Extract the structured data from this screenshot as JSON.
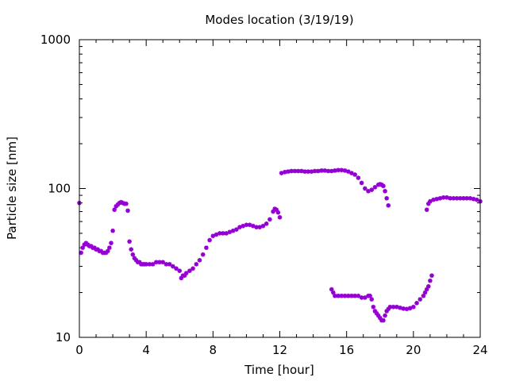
{
  "chart_data": {
    "type": "scatter",
    "title": "Modes location (3/19/19)",
    "xlabel": "Time [hour]",
    "ylabel": "Particle size [nm]",
    "xlim": [
      0,
      24
    ],
    "ylim": [
      10,
      1000
    ],
    "yscale": "log",
    "grid": false,
    "marker_color": "#9400d3",
    "x_ticks": [
      0,
      4,
      8,
      12,
      16,
      20,
      24
    ],
    "x_tick_labels": [
      "0",
      "4",
      "8",
      "12",
      "16",
      "20",
      "24"
    ],
    "y_ticks": [
      10,
      100,
      1000
    ],
    "y_tick_labels": [
      "10",
      "100",
      "1000"
    ],
    "series": [
      {
        "points": [
          [
            0.0,
            80
          ],
          [
            0.1,
            37
          ],
          [
            0.2,
            40
          ],
          [
            0.3,
            42
          ],
          [
            0.4,
            43
          ],
          [
            0.5,
            42
          ],
          [
            0.6,
            41
          ],
          [
            0.7,
            41
          ],
          [
            0.8,
            40
          ],
          [
            0.9,
            40
          ],
          [
            1.0,
            39
          ],
          [
            1.1,
            39
          ],
          [
            1.2,
            38
          ],
          [
            1.3,
            38
          ],
          [
            1.4,
            37
          ],
          [
            1.5,
            37
          ],
          [
            1.6,
            37
          ],
          [
            1.7,
            38
          ],
          [
            1.8,
            40
          ],
          [
            1.9,
            43
          ],
          [
            2.0,
            52
          ],
          [
            2.1,
            72
          ],
          [
            2.2,
            76
          ],
          [
            2.3,
            78
          ],
          [
            2.4,
            80
          ],
          [
            2.5,
            81
          ],
          [
            2.6,
            80
          ],
          [
            2.7,
            79
          ],
          [
            2.8,
            79
          ],
          [
            2.9,
            71
          ],
          [
            3.0,
            44
          ],
          [
            3.1,
            39
          ],
          [
            3.2,
            36
          ],
          [
            3.3,
            34
          ],
          [
            3.4,
            33
          ],
          [
            3.5,
            32
          ],
          [
            3.6,
            32
          ],
          [
            3.7,
            31
          ],
          [
            3.8,
            31
          ],
          [
            3.9,
            31
          ],
          [
            4.0,
            31
          ],
          [
            4.2,
            31
          ],
          [
            4.4,
            31
          ],
          [
            4.6,
            32
          ],
          [
            4.8,
            32
          ],
          [
            5.0,
            32
          ],
          [
            5.2,
            31
          ],
          [
            5.4,
            31
          ],
          [
            5.6,
            30
          ],
          [
            5.8,
            29
          ],
          [
            6.0,
            28
          ],
          [
            6.1,
            25
          ],
          [
            6.2,
            26
          ],
          [
            6.3,
            26
          ],
          [
            6.4,
            27
          ],
          [
            6.6,
            28
          ],
          [
            6.8,
            29
          ],
          [
            7.0,
            31
          ],
          [
            7.2,
            33
          ],
          [
            7.4,
            36
          ],
          [
            7.6,
            40
          ],
          [
            7.8,
            45
          ],
          [
            8.0,
            48
          ],
          [
            8.2,
            49
          ],
          [
            8.4,
            50
          ],
          [
            8.6,
            50
          ],
          [
            8.8,
            50
          ],
          [
            9.0,
            51
          ],
          [
            9.2,
            52
          ],
          [
            9.4,
            53
          ],
          [
            9.6,
            55
          ],
          [
            9.8,
            56
          ],
          [
            10.0,
            57
          ],
          [
            10.2,
            57
          ],
          [
            10.4,
            56
          ],
          [
            10.6,
            55
          ],
          [
            10.8,
            55
          ],
          [
            11.0,
            56
          ],
          [
            11.2,
            58
          ],
          [
            11.4,
            62
          ],
          [
            11.6,
            70
          ],
          [
            11.7,
            73
          ],
          [
            11.8,
            72
          ],
          [
            11.9,
            69
          ],
          [
            12.0,
            64
          ],
          [
            12.1,
            127
          ],
          [
            12.3,
            129
          ],
          [
            12.5,
            130
          ],
          [
            12.7,
            131
          ],
          [
            12.9,
            131
          ],
          [
            13.1,
            131
          ],
          [
            13.3,
            131
          ],
          [
            13.5,
            130
          ],
          [
            13.7,
            130
          ],
          [
            13.9,
            130
          ],
          [
            14.1,
            131
          ],
          [
            14.3,
            131
          ],
          [
            14.5,
            132
          ],
          [
            14.7,
            132
          ],
          [
            14.9,
            131
          ],
          [
            15.1,
            131
          ],
          [
            15.3,
            132
          ],
          [
            15.5,
            133
          ],
          [
            15.7,
            133
          ],
          [
            15.9,
            132
          ],
          [
            16.1,
            130
          ],
          [
            16.3,
            127
          ],
          [
            16.5,
            124
          ],
          [
            16.7,
            118
          ],
          [
            16.9,
            109
          ],
          [
            17.1,
            100
          ],
          [
            17.3,
            96
          ],
          [
            17.5,
            98
          ],
          [
            17.7,
            102
          ],
          [
            17.9,
            106
          ],
          [
            18.0,
            107
          ],
          [
            18.1,
            106
          ],
          [
            18.2,
            104
          ],
          [
            18.3,
            96
          ],
          [
            18.4,
            86
          ],
          [
            18.5,
            77
          ],
          [
            15.1,
            21
          ],
          [
            15.2,
            20
          ],
          [
            15.3,
            19
          ],
          [
            15.5,
            19
          ],
          [
            15.7,
            19
          ],
          [
            15.9,
            19
          ],
          [
            16.1,
            19
          ],
          [
            16.3,
            19
          ],
          [
            16.5,
            19
          ],
          [
            16.7,
            19
          ],
          [
            16.9,
            18.5
          ],
          [
            17.1,
            18.5
          ],
          [
            17.3,
            19
          ],
          [
            17.4,
            19
          ],
          [
            17.5,
            18
          ],
          [
            17.6,
            16
          ],
          [
            17.7,
            15
          ],
          [
            17.8,
            14.5
          ],
          [
            17.9,
            14
          ],
          [
            18.0,
            13.5
          ],
          [
            18.1,
            13
          ],
          [
            18.2,
            13
          ],
          [
            18.3,
            14
          ],
          [
            18.4,
            15
          ],
          [
            18.5,
            15.5
          ],
          [
            18.6,
            16
          ],
          [
            18.8,
            16
          ],
          [
            19.0,
            16
          ],
          [
            19.2,
            15.8
          ],
          [
            19.4,
            15.6
          ],
          [
            19.6,
            15.5
          ],
          [
            19.8,
            15.7
          ],
          [
            20.0,
            16
          ],
          [
            20.2,
            17
          ],
          [
            20.4,
            18
          ],
          [
            20.6,
            19
          ],
          [
            20.7,
            20
          ],
          [
            20.8,
            21
          ],
          [
            20.9,
            22
          ],
          [
            21.0,
            24
          ],
          [
            21.1,
            26
          ],
          [
            20.8,
            72
          ],
          [
            20.9,
            79
          ],
          [
            21.0,
            82
          ],
          [
            21.2,
            84
          ],
          [
            21.4,
            85
          ],
          [
            21.6,
            86
          ],
          [
            21.8,
            87
          ],
          [
            22.0,
            87
          ],
          [
            22.2,
            86
          ],
          [
            22.4,
            86
          ],
          [
            22.6,
            86
          ],
          [
            22.8,
            86
          ],
          [
            23.0,
            86
          ],
          [
            23.2,
            86
          ],
          [
            23.4,
            86
          ],
          [
            23.6,
            85
          ],
          [
            23.8,
            84
          ],
          [
            24.0,
            82
          ]
        ]
      }
    ]
  }
}
